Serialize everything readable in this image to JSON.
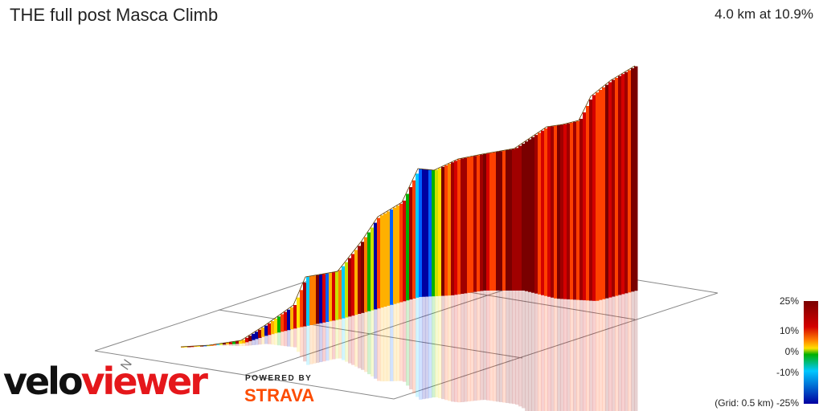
{
  "header": {
    "title": "THE full post Masca Climb",
    "summary": "4.0 km at 10.9%"
  },
  "branding": {
    "logo_part1": "velo",
    "logo_part2": "viewer",
    "powered_by": "POWERED BY",
    "strava": "STRAVA"
  },
  "compass": {
    "label": "N"
  },
  "legend": {
    "labels": [
      "25%",
      "10%",
      "0%",
      "-10%",
      "-25%"
    ],
    "grid_note": "(Grid: 0.5 km)",
    "colors": [
      "#7a0000",
      "#d40000",
      "#ff7f00",
      "#ffe000",
      "#00b000",
      "#00c8ff",
      "#0000a0"
    ]
  },
  "colors": {
    "grid": "#888888",
    "reflection_opacity": 0.18
  }
}
